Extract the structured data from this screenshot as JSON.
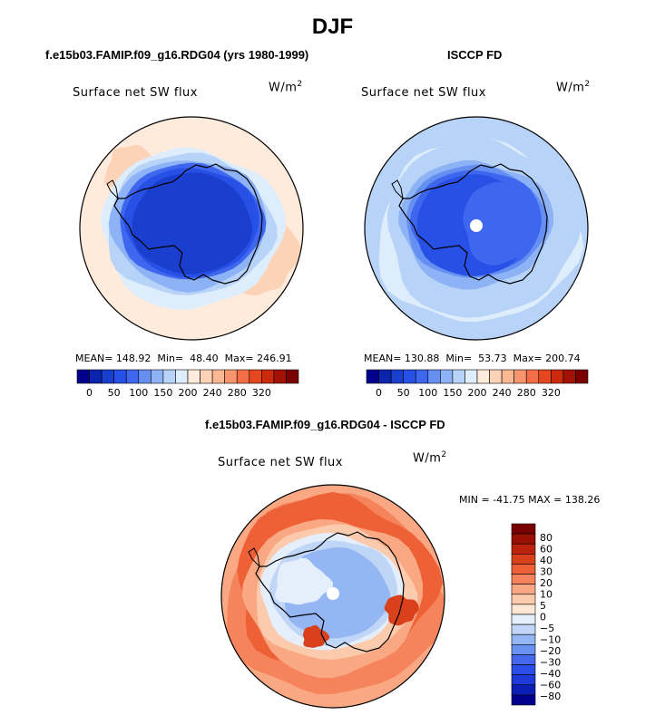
{
  "title": "DJF",
  "colors": {
    "abs_palette": [
      "#00008c",
      "#0b24ad",
      "#1a3fcf",
      "#2750e6",
      "#3e66ee",
      "#6590f2",
      "#8db2f5",
      "#b8d3f8",
      "#deedfb",
      "#ffebdc",
      "#fdd3b8",
      "#fbb893",
      "#f8956e",
      "#f46e45",
      "#e5481f",
      "#cc2a0c",
      "#a41206",
      "#790000"
    ],
    "diff_palette": [
      "#00008c",
      "#0c1fb5",
      "#1d39d8",
      "#2c4ee8",
      "#4568ec",
      "#6a91f0",
      "#94b6f3",
      "#c0d6f7",
      "#e4effb",
      "#ffe7d6",
      "#fccaad",
      "#f9a883",
      "#f5845c",
      "#ee6035",
      "#d9401c",
      "#bc230d",
      "#981002",
      "#790000"
    ],
    "continent_outline": "#000000",
    "missing": "#ffffff"
  },
  "panels": {
    "left": {
      "title": "f.e15b03.FAMIP.f09_g16.RDG04 (yrs 1980-1999)",
      "label": "Surface net SW flux",
      "units_base": "W/m",
      "units_exp": "2",
      "stats": {
        "mean_label": "MEAN=",
        "mean": "148.92",
        "min_label": "Min=",
        "min": "48.40",
        "max_label": "Max=",
        "max": "246.91"
      },
      "polar_hole": false
    },
    "right": {
      "title": "ISCCP FD",
      "label": "Surface net SW flux",
      "units_base": "W/m",
      "units_exp": "2",
      "stats": {
        "mean_label": "MEAN=",
        "mean": "130.88",
        "min_label": "Min=",
        "min": "53.73",
        "max_label": "Max=",
        "max": "200.74"
      },
      "polar_hole": true
    },
    "bottom": {
      "title": "f.e15b03.FAMIP.f09_g16.RDG04 - ISCCP FD",
      "label": "Surface net SW flux",
      "units_base": "W/m",
      "units_exp": "2",
      "minmax": "MIN = -41.75 MAX = 138.26",
      "polar_hole": true
    }
  },
  "chart_data": [
    {
      "type": "heatmap",
      "projection": "south-polar-stereographic",
      "title": "f.e15b03.FAMIP.f09_g16.RDG04 (yrs 1980-1999)",
      "variable": "Surface net SW flux",
      "units": "W/m2",
      "mean": 148.92,
      "min": 48.4,
      "max": 246.91,
      "colorbar_ticks": [
        "0",
        "50",
        "100",
        "150",
        "200",
        "240",
        "280",
        "320"
      ]
    },
    {
      "type": "heatmap",
      "projection": "south-polar-stereographic",
      "title": "ISCCP FD",
      "variable": "Surface net SW flux",
      "units": "W/m2",
      "mean": 130.88,
      "min": 53.73,
      "max": 200.74,
      "colorbar_ticks": [
        "0",
        "50",
        "100",
        "150",
        "200",
        "240",
        "280",
        "320"
      ]
    },
    {
      "type": "heatmap",
      "projection": "south-polar-stereographic",
      "title": "f.e15b03.FAMIP.f09_g16.RDG04 - ISCCP FD",
      "variable": "Surface net SW flux",
      "units": "W/m2",
      "min": -41.75,
      "max": 138.26,
      "colorbar_ticks": [
        "80",
        "60",
        "40",
        "30",
        "20",
        "10",
        "5",
        "0",
        "−5",
        "−10",
        "−20",
        "−30",
        "−40",
        "−60",
        "−80"
      ]
    }
  ]
}
